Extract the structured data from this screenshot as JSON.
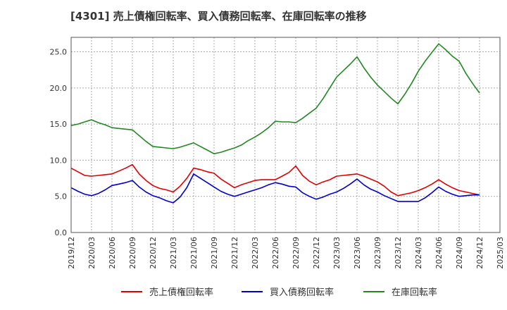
{
  "chart_data": {
    "type": "line",
    "title": "[4301]  売上債権回転率、買入債務回転率、在庫回転率の推移",
    "xlabel": "",
    "ylabel": "",
    "ylim": [
      0,
      27
    ],
    "yticks": [
      0.0,
      5.0,
      10.0,
      15.0,
      20.0,
      25.0
    ],
    "ytick_labels": [
      "0.0",
      "5.0",
      "10.0",
      "15.0",
      "20.0",
      "25.0"
    ],
    "xtick_labels": [
      "2019/12",
      "2020/03",
      "2020/06",
      "2020/09",
      "2020/12",
      "2021/03",
      "2021/06",
      "2021/09",
      "2021/12",
      "2022/03",
      "2022/06",
      "2022/09",
      "2022/12",
      "2023/03",
      "2023/06",
      "2023/09",
      "2023/12",
      "2024/03",
      "2024/06",
      "2024/09",
      "2024/12",
      "2025/03"
    ],
    "grid": true,
    "legend_position": "bottom",
    "x": [
      "2019/12",
      "2020/01",
      "2020/02",
      "2020/03",
      "2020/04",
      "2020/05",
      "2020/06",
      "2020/07",
      "2020/08",
      "2020/09",
      "2020/10",
      "2020/11",
      "2020/12",
      "2021/01",
      "2021/02",
      "2021/03",
      "2021/04",
      "2021/05",
      "2021/06",
      "2021/07",
      "2021/08",
      "2021/09",
      "2021/10",
      "2021/11",
      "2021/12",
      "2022/01",
      "2022/02",
      "2022/03",
      "2022/04",
      "2022/05",
      "2022/06",
      "2022/07",
      "2022/08",
      "2022/09",
      "2022/10",
      "2022/11",
      "2022/12",
      "2023/01",
      "2023/02",
      "2023/03",
      "2023/04",
      "2023/05",
      "2023/06",
      "2023/07",
      "2023/08",
      "2023/09",
      "2023/10",
      "2023/11",
      "2023/12",
      "2024/01",
      "2024/02",
      "2024/03",
      "2024/04",
      "2024/05",
      "2024/06",
      "2024/07",
      "2024/08",
      "2024/09",
      "2024/10",
      "2024/11",
      "2024/12"
    ],
    "series": [
      {
        "name": "売上債権回転率",
        "color": "#e00000",
        "values": [
          8.9,
          8.4,
          7.9,
          7.8,
          7.9,
          8.0,
          8.1,
          8.5,
          8.9,
          9.4,
          8.1,
          7.2,
          6.5,
          6.1,
          5.9,
          5.6,
          6.4,
          7.5,
          8.9,
          8.7,
          8.4,
          8.2,
          7.4,
          6.8,
          6.2,
          6.6,
          6.9,
          7.2,
          7.3,
          7.3,
          7.3,
          7.8,
          8.3,
          9.2,
          7.9,
          7.1,
          6.6,
          7.0,
          7.3,
          7.8,
          7.9,
          8.0,
          8.1,
          7.8,
          7.4,
          7.0,
          6.4,
          5.6,
          5.1,
          5.3,
          5.5,
          5.8,
          6.2,
          6.7,
          7.3,
          6.7,
          6.2,
          5.8,
          5.6,
          5.4,
          5.2
        ]
      },
      {
        "name": "買入債務回転率",
        "color": "#0000cc",
        "values": [
          6.2,
          5.7,
          5.3,
          5.1,
          5.4,
          5.9,
          6.5,
          6.7,
          6.9,
          7.2,
          6.3,
          5.6,
          5.1,
          4.8,
          4.4,
          4.1,
          4.9,
          6.2,
          8.1,
          7.5,
          6.9,
          6.3,
          5.7,
          5.3,
          5.0,
          5.3,
          5.6,
          5.9,
          6.2,
          6.6,
          6.9,
          6.7,
          6.4,
          6.3,
          5.5,
          5.0,
          4.6,
          4.9,
          5.3,
          5.6,
          6.1,
          6.7,
          7.4,
          6.6,
          6.0,
          5.6,
          5.1,
          4.7,
          4.3,
          4.3,
          4.3,
          4.3,
          4.8,
          5.5,
          6.3,
          5.7,
          5.3,
          5.0,
          5.1,
          5.2,
          5.2
        ]
      },
      {
        "name": "在庫回転率",
        "color": "#228822",
        "values": [
          14.8,
          15.0,
          15.3,
          15.6,
          15.2,
          14.9,
          14.5,
          14.4,
          14.3,
          14.2,
          13.4,
          12.6,
          11.9,
          11.8,
          11.7,
          11.6,
          11.8,
          12.1,
          12.4,
          11.9,
          11.4,
          10.9,
          11.1,
          11.4,
          11.7,
          12.1,
          12.7,
          13.2,
          13.8,
          14.5,
          15.4,
          15.3,
          15.3,
          15.2,
          15.8,
          16.5,
          17.2,
          18.5,
          20.0,
          21.5,
          22.4,
          23.3,
          24.3,
          22.8,
          21.5,
          20.4,
          19.5,
          18.6,
          17.8,
          19.1,
          20.6,
          22.3,
          23.7,
          24.9,
          26.1,
          25.3,
          24.4,
          23.7,
          22.0,
          20.6,
          19.3
        ]
      }
    ]
  }
}
